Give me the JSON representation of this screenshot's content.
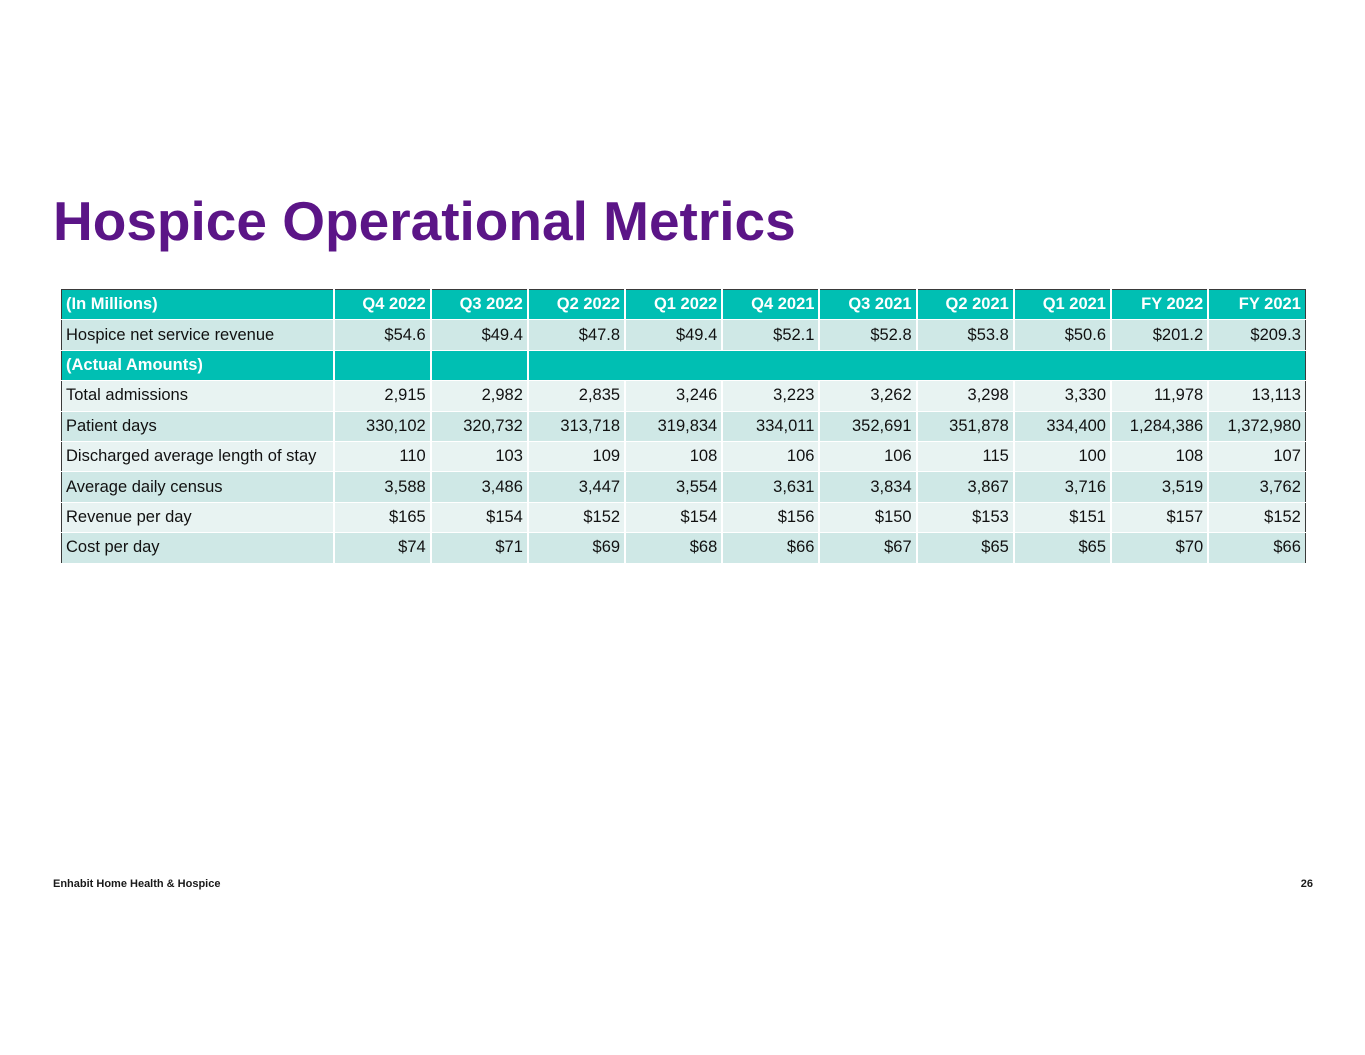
{
  "title": "Hospice Operational Metrics",
  "table": {
    "header_label": "(In Millions)",
    "columns": [
      "Q4 2022",
      "Q3 2022",
      "Q2 2022",
      "Q1 2022",
      "Q4 2021",
      "Q3 2021",
      "Q2 2021",
      "Q1 2021",
      "FY 2022",
      "FY 2021"
    ],
    "revenue_row": {
      "label": "Hospice net service revenue",
      "values": [
        "$54.6",
        "$49.4",
        "$47.8",
        "$49.4",
        "$52.1",
        "$52.8",
        "$53.8",
        "$50.6",
        "$201.2",
        "$209.3"
      ]
    },
    "section_label": "(Actual Amounts)",
    "rows": [
      {
        "label": "Total admissions",
        "values": [
          "2,915",
          "2,982",
          "2,835",
          "3,246",
          "3,223",
          "3,262",
          "3,298",
          "3,330",
          "11,978",
          "13,113"
        ]
      },
      {
        "label": "Patient days",
        "values": [
          "330,102",
          "320,732",
          "313,718",
          "319,834",
          "334,011",
          "352,691",
          "351,878",
          "334,400",
          "1,284,386",
          "1,372,980"
        ]
      },
      {
        "label": "Discharged average length of stay",
        "values": [
          "110",
          "103",
          "109",
          "108",
          "106",
          "106",
          "115",
          "100",
          "108",
          "107"
        ]
      },
      {
        "label": "Average daily census",
        "values": [
          "3,588",
          "3,486",
          "3,447",
          "3,554",
          "3,631",
          "3,834",
          "3,867",
          "3,716",
          "3,519",
          "3,762"
        ]
      },
      {
        "label": "Revenue per day",
        "values": [
          "$165",
          "$154",
          "$152",
          "$154",
          "$156",
          "$150",
          "$153",
          "$151",
          "$157",
          "$152"
        ]
      },
      {
        "label": "Cost per day",
        "values": [
          "$74",
          "$71",
          "$69",
          "$68",
          "$66",
          "$67",
          "$65",
          "$65",
          "$70",
          "$66"
        ]
      }
    ]
  },
  "footer": {
    "company": "Enhabit Home Health & Hospice",
    "page_number": "26"
  },
  "colors": {
    "title": "#5b1587",
    "header_teal": "#00bfb3",
    "row_dark": "#cfe8e6",
    "row_light": "#e8f3f2"
  }
}
